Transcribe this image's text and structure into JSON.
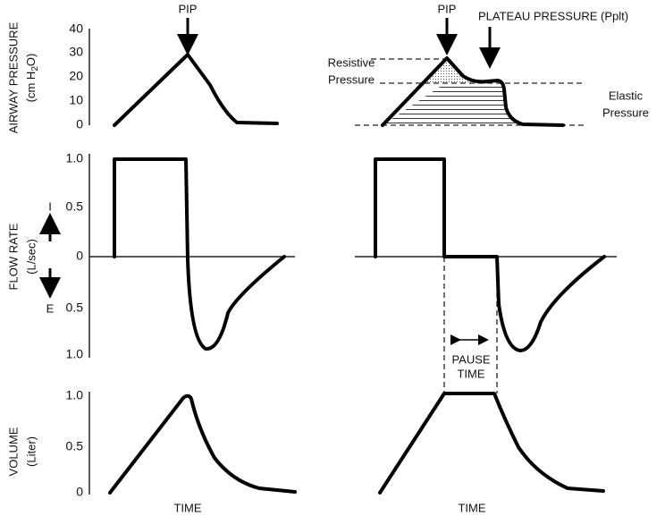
{
  "pressure_panel": {
    "axis_label": "AIRWAY PRESSURE",
    "unit_parts": [
      "(cm H",
      "2",
      "O)"
    ],
    "ticks": [
      "40",
      "30",
      "20",
      "10",
      "0"
    ],
    "left_annotation": "PIP",
    "right_annotations": {
      "pip": "PIP",
      "plateau": "PLATEAU PRESSURE (Pplt)",
      "resistive": [
        "Resistive",
        "Pressure"
      ],
      "elastic": [
        "Elastic",
        "Pressure"
      ]
    }
  },
  "flow_panel": {
    "axis_label": "FLOW RATE",
    "unit": "(L/sec)",
    "ticks": [
      "1.0",
      "0.5",
      "0",
      "0.5",
      "1.0"
    ],
    "inspiration": "I",
    "expiration": "E",
    "pause": [
      "PAUSE",
      "TIME"
    ]
  },
  "volume_panel": {
    "axis_label": "VOLUME",
    "unit": "(Liter)",
    "ticks": [
      "1.0",
      "0.5",
      "0"
    ]
  },
  "x_labels": [
    "TIME",
    "TIME"
  ]
}
